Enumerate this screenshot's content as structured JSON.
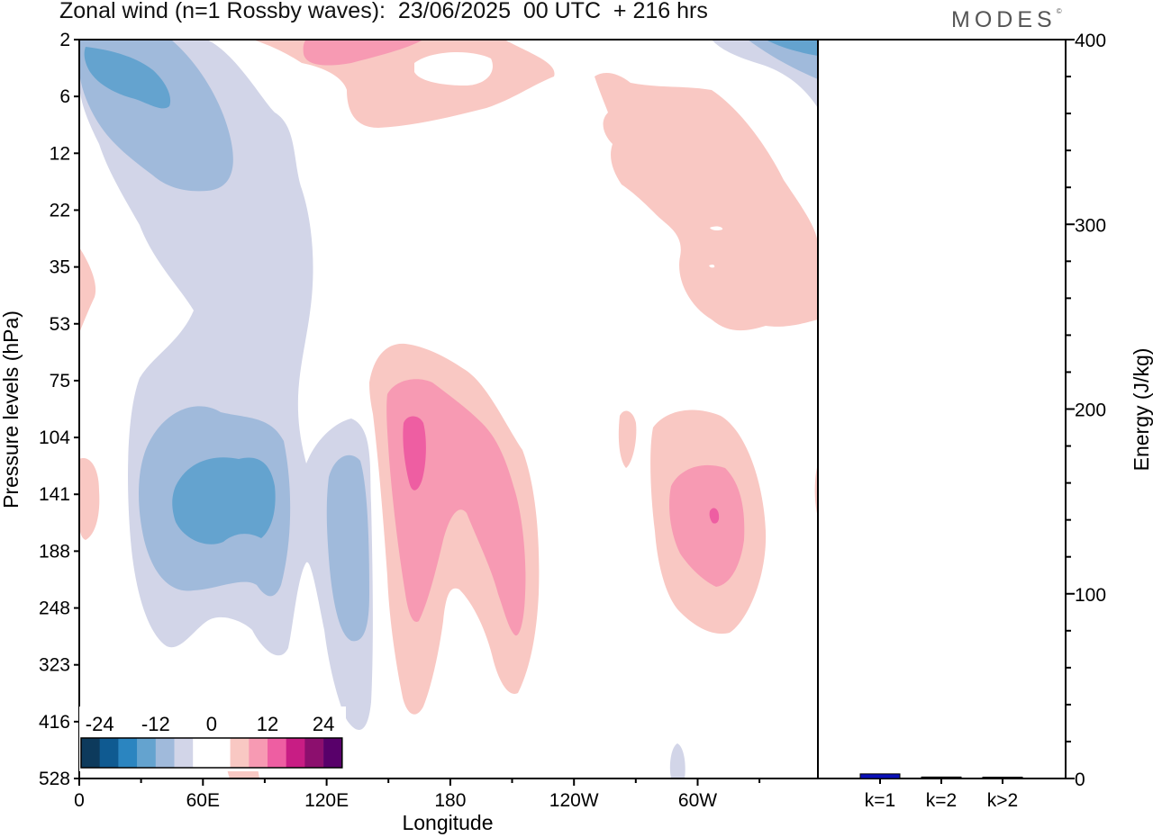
{
  "header": {
    "title": "Zonal wind (n=1 Rossby waves):  23/06/2025  00 UTC  + 216 hrs",
    "brand": "MODES"
  },
  "colors": {
    "neg_levels": [
      "#0d3a5c",
      "#0f5a91",
      "#2b85c0",
      "#64a3cf",
      "#a0badb",
      "#d2d5e8"
    ],
    "pos_levels": [
      "#f9c8c3",
      "#f79ab3",
      "#ee5ea2",
      "#c81d84",
      "#8c0f6e",
      "#58006a"
    ],
    "zero": "#ffffff",
    "bar_k1": "#0a10b8",
    "bar_other": "#000000"
  },
  "chart_data": [
    {
      "type": "heatmap",
      "xlabel": "Longitude",
      "ylabel": "Pressure levels (hPa)",
      "x_ticks": [
        "0",
        "60E",
        "120E",
        "180",
        "120W",
        "60W"
      ],
      "y_ticks": [
        "2",
        "6",
        "12",
        "22",
        "35",
        "53",
        "75",
        "104",
        "141",
        "188",
        "248",
        "323",
        "416",
        "528"
      ],
      "colorbar": {
        "labels": [
          "-24",
          "-12",
          "0",
          "12",
          "24"
        ],
        "levels": [
          -24,
          -18,
          -12,
          -6,
          -3,
          3,
          6,
          12,
          18,
          24
        ]
      },
      "contours": [
        {
          "sign": "neg",
          "level": 1,
          "lon": 25,
          "p": 6
        },
        {
          "sign": "neg",
          "level": 2,
          "lon": 50,
          "p": 141
        },
        {
          "sign": "neg",
          "level": 1,
          "lon": 127,
          "p": 188
        },
        {
          "sign": "pos",
          "level": 3,
          "lon": 163,
          "p": 104
        },
        {
          "sign": "pos",
          "level": 2,
          "lon": 175,
          "p": 188
        },
        {
          "sign": "pos",
          "level": 2,
          "lon": -65,
          "p": 141
        },
        {
          "sign": "pos",
          "level": 1,
          "lon": -60,
          "p": 22
        },
        {
          "sign": "pos",
          "level": 1,
          "lon": 145,
          "p": 2
        }
      ]
    },
    {
      "type": "bar",
      "categories": [
        "k=1",
        "k=2",
        "k>2"
      ],
      "values": [
        2.5,
        0.8,
        0.6
      ],
      "ylabel": "Energy (J/kg)",
      "ylim": [
        0,
        400
      ],
      "y_ticks": [
        0,
        100,
        200,
        300,
        400
      ]
    }
  ]
}
